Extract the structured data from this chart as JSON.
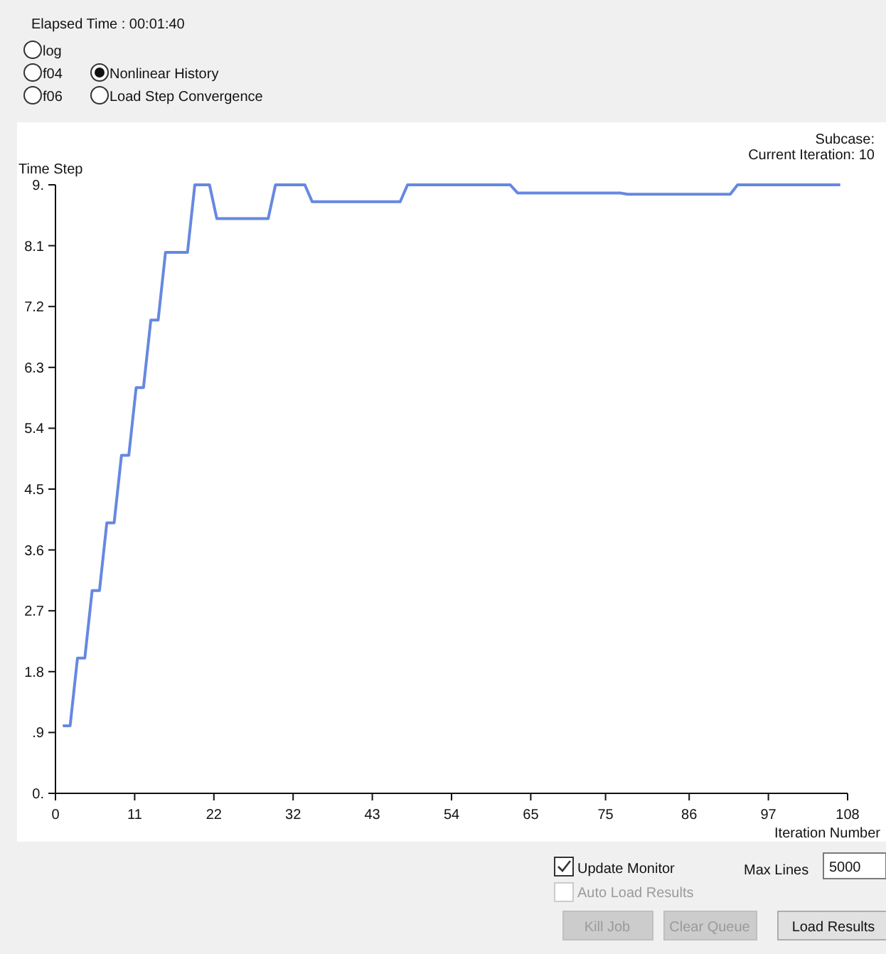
{
  "chart_data": {
    "type": "line",
    "xlabel": "Iteration Number",
    "ylabel": "Time Step",
    "x": [
      1,
      2,
      3,
      4,
      5,
      6,
      7,
      8,
      9,
      10,
      11,
      12,
      13,
      14,
      15,
      18,
      19,
      21,
      22,
      29,
      30,
      34,
      35,
      47,
      48,
      62,
      63,
      77,
      78,
      92,
      93,
      107
    ],
    "series": [
      {
        "color": "#6688e0",
        "values": [
          1,
          1,
          2,
          2,
          3,
          3,
          4,
          4,
          5,
          5,
          6,
          6,
          7,
          7,
          8,
          8,
          9,
          9,
          8.5,
          8.5,
          9,
          9,
          8.75,
          8.75,
          9,
          9,
          8.88,
          8.88,
          8.86,
          8.86,
          9,
          9
        ]
      }
    ],
    "xlim": [
      0,
      108
    ],
    "ylim": [
      0,
      9
    ],
    "xticks": [
      0,
      {
        "value": 10.8,
        "label": "11"
      },
      {
        "value": 21.6,
        "label": "22"
      },
      {
        "value": 32.4,
        "label": "32"
      },
      {
        "value": 43.2,
        "label": "43"
      },
      54,
      {
        "value": 64.8,
        "label": "65"
      },
      75,
      {
        "value": 86.4,
        "label": "86"
      },
      {
        "value": 97.2,
        "label": "97"
      },
      108
    ],
    "yticks": [
      {
        "value": 0,
        "label": "0."
      },
      {
        "value": 0.9,
        "label": ".9"
      },
      1.8,
      2.7,
      3.6,
      4.5,
      5.4,
      6.3,
      7.2,
      8.1,
      {
        "value": 9,
        "label": "9."
      }
    ],
    "grid": false,
    "marker": "none",
    "line_style": "solid",
    "annotations": [
      "Elapsed Time :  00:01:40",
      "log",
      "f04",
      "Nonlinear History",
      "f06",
      "Load Step Convergence",
      "Subcase:",
      "Current Iteration: 10",
      "Update Monitor",
      "Max Lines",
      "5000",
      "Auto Load Results",
      "Kill Job",
      "Clear Queue",
      "Load Results"
    ]
  }
}
